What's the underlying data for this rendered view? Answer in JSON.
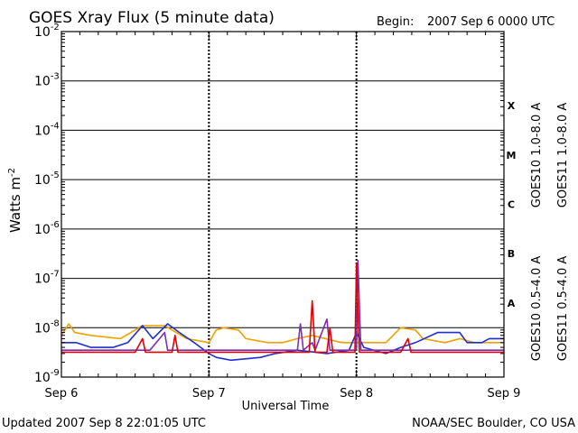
{
  "header": {
    "title": "GOES Xray Flux (5 minute data)",
    "begin_label": "Begin:",
    "begin_value": "2007 Sep 6 0000 UTC"
  },
  "footer": {
    "updated": "Updated 2007 Sep  8 22:01:05 UTC",
    "credit": "NOAA/SEC Boulder, CO USA"
  },
  "colors": {
    "goes10_long": "#7b2fb5",
    "goes11_long": "#e00000",
    "goes10_short": "#f0a000",
    "goes11_short": "#1f2fd0"
  },
  "chart_data": {
    "type": "line",
    "title": "GOES Xray Flux (5 minute data)",
    "xlabel": "Universal Time",
    "ylabel": "Watts m-2",
    "y_scale": "log",
    "ylim": [
      1e-09,
      0.01
    ],
    "xlim": [
      "2007-09-06",
      "2007-09-09"
    ],
    "x_ticks": [
      "Sep 6",
      "Sep 7",
      "Sep 8",
      "Sep 9"
    ],
    "y_ticks": [
      {
        "base": "10",
        "exp": "-2"
      },
      {
        "base": "10",
        "exp": "-3"
      },
      {
        "base": "10",
        "exp": "-4"
      },
      {
        "base": "10",
        "exp": "-5"
      },
      {
        "base": "10",
        "exp": "-6"
      },
      {
        "base": "10",
        "exp": "-7"
      },
      {
        "base": "10",
        "exp": "-8"
      },
      {
        "base": "10",
        "exp": "-9"
      }
    ],
    "flare_classes": [
      "X",
      "M",
      "C",
      "B",
      "A"
    ],
    "legend_right": [
      {
        "label": "GOES10 1.0-8.0 A",
        "color": "#7b2fb5"
      },
      {
        "label": "GOES11 1.0-8.0 A",
        "color": "#e00000"
      }
    ],
    "legend_left": [
      {
        "label": "GOES10 0.5-4.0 A",
        "color": "#f0a000"
      },
      {
        "label": "GOES11 0.5-4.0 A",
        "color": "#1f2fd0"
      }
    ],
    "series": [
      {
        "name": "GOES10 0.5-4.0 A",
        "color": "#f0a000",
        "points": [
          [
            0,
            7e-09
          ],
          [
            0.05,
            1.2e-08
          ],
          [
            0.09,
            8e-09
          ],
          [
            0.2,
            7e-09
          ],
          [
            0.4,
            6e-09
          ],
          [
            0.55,
            1.1e-08
          ],
          [
            0.7,
            1.1e-08
          ],
          [
            0.85,
            6e-09
          ],
          [
            1.0,
            5e-09
          ],
          [
            1.05,
            9e-09
          ],
          [
            1.1,
            1e-08
          ],
          [
            1.2,
            9e-09
          ],
          [
            1.25,
            6e-09
          ],
          [
            1.4,
            5e-09
          ],
          [
            1.5,
            5e-09
          ],
          [
            1.6,
            6e-09
          ],
          [
            1.7,
            7e-09
          ],
          [
            1.9,
            5e-09
          ],
          [
            2.0,
            5e-09
          ],
          [
            2.2,
            5e-09
          ],
          [
            2.3,
            1e-08
          ],
          [
            2.4,
            9e-09
          ],
          [
            2.45,
            6e-09
          ],
          [
            2.6,
            5e-09
          ],
          [
            2.7,
            6e-09
          ],
          [
            2.8,
            5e-09
          ],
          [
            3.0,
            5e-09
          ]
        ]
      },
      {
        "name": "GOES11 0.5-4.0 A",
        "color": "#1f2fd0",
        "points": [
          [
            0,
            5e-09
          ],
          [
            0.1,
            5e-09
          ],
          [
            0.2,
            4e-09
          ],
          [
            0.35,
            4e-09
          ],
          [
            0.45,
            5e-09
          ],
          [
            0.55,
            1.1e-08
          ],
          [
            0.62,
            6e-09
          ],
          [
            0.72,
            1.2e-08
          ],
          [
            0.8,
            8e-09
          ],
          [
            0.9,
            5e-09
          ],
          [
            1.0,
            3e-09
          ],
          [
            1.05,
            2.5e-09
          ],
          [
            1.15,
            2.2e-09
          ],
          [
            1.35,
            2.5e-09
          ],
          [
            1.45,
            3e-09
          ],
          [
            1.6,
            3.5e-09
          ],
          [
            1.8,
            3e-09
          ],
          [
            1.95,
            3.5e-09
          ],
          [
            2.0,
            8e-09
          ],
          [
            2.05,
            4e-09
          ],
          [
            2.2,
            3e-09
          ],
          [
            2.3,
            4e-09
          ],
          [
            2.4,
            5e-09
          ],
          [
            2.55,
            8e-09
          ],
          [
            2.7,
            8e-09
          ],
          [
            2.75,
            5e-09
          ],
          [
            2.85,
            5e-09
          ],
          [
            2.9,
            6e-09
          ],
          [
            3.0,
            6e-09
          ]
        ]
      },
      {
        "name": "GOES10 1.0-8.0 A",
        "color": "#7b2fb5",
        "points": [
          [
            0,
            3.5e-09
          ],
          [
            0.6,
            3.5e-09
          ],
          [
            0.7,
            8e-09
          ],
          [
            0.72,
            3.5e-09
          ],
          [
            1.6,
            3.5e-09
          ],
          [
            1.62,
            1.2e-08
          ],
          [
            1.64,
            3.5e-09
          ],
          [
            1.7,
            5e-09
          ],
          [
            1.72,
            3.5e-09
          ],
          [
            1.8,
            1.5e-08
          ],
          [
            1.82,
            3.5e-09
          ],
          [
            2.0,
            3.5e-09
          ],
          [
            2.01,
            2.3e-07
          ],
          [
            2.03,
            3.5e-09
          ],
          [
            2.4,
            3.5e-09
          ],
          [
            3.0,
            3.5e-09
          ]
        ]
      },
      {
        "name": "GOES11 1.0-8.0 A",
        "color": "#e00000",
        "points": [
          [
            0,
            3.2e-09
          ],
          [
            0.5,
            3.2e-09
          ],
          [
            0.55,
            6e-09
          ],
          [
            0.57,
            3.2e-09
          ],
          [
            0.75,
            3.2e-09
          ],
          [
            0.77,
            7e-09
          ],
          [
            0.79,
            3.2e-09
          ],
          [
            1.3,
            3.2e-09
          ],
          [
            1.68,
            3.2e-09
          ],
          [
            1.7,
            3.5e-08
          ],
          [
            1.72,
            3.2e-09
          ],
          [
            1.8,
            3.2e-09
          ],
          [
            1.82,
            1e-08
          ],
          [
            1.84,
            3.2e-09
          ],
          [
            1.99,
            3.2e-09
          ],
          [
            2.0,
            2e-07
          ],
          [
            2.02,
            3.2e-09
          ],
          [
            2.3,
            3.2e-09
          ],
          [
            2.35,
            6e-09
          ],
          [
            2.37,
            3.2e-09
          ],
          [
            3.0,
            3.2e-09
          ]
        ]
      }
    ]
  }
}
